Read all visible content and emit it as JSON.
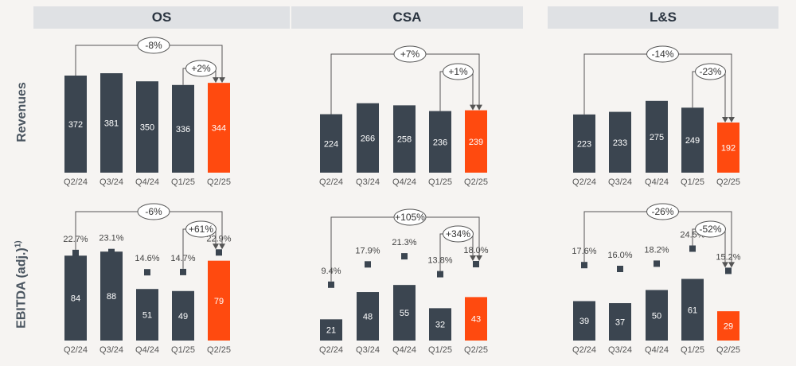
{
  "headers": [
    "OS",
    "CSA",
    "L&S"
  ],
  "row_labels": {
    "revenues": "Revenues",
    "ebitda": "EBITDA (adj.)",
    "ebitda_sup": "1)"
  },
  "colors": {
    "bar": "#3b4550",
    "highlight": "#ff4a0f",
    "line": "#555555",
    "header_bg": "#dfe1e4"
  },
  "chart_data": [
    {
      "type": "bar",
      "segment": "OS",
      "row": "Revenues",
      "categories": [
        "Q2/24",
        "Q3/24",
        "Q4/24",
        "Q1/25",
        "Q2/25"
      ],
      "values": [
        372,
        381,
        350,
        336,
        344
      ],
      "yoy_label": "-8%",
      "qoq_label": "+2%"
    },
    {
      "type": "bar",
      "segment": "CSA",
      "row": "Revenues",
      "categories": [
        "Q2/24",
        "Q3/24",
        "Q4/24",
        "Q1/25",
        "Q2/25"
      ],
      "values": [
        224,
        266,
        258,
        236,
        239
      ],
      "yoy_label": "+7%",
      "qoq_label": "+1%"
    },
    {
      "type": "bar",
      "segment": "L&S",
      "row": "Revenues",
      "categories": [
        "Q2/24",
        "Q3/24",
        "Q4/24",
        "Q1/25",
        "Q2/25"
      ],
      "values": [
        223,
        233,
        275,
        249,
        192
      ],
      "yoy_label": "-14%",
      "qoq_label": "-23%"
    },
    {
      "type": "bar",
      "segment": "OS",
      "row": "EBITDA (adj.)",
      "categories": [
        "Q2/24",
        "Q3/24",
        "Q4/24",
        "Q1/25",
        "Q2/25"
      ],
      "values": [
        84,
        88,
        51,
        49,
        79
      ],
      "margins": [
        "22.7%",
        "23.1%",
        "14.6%",
        "14.7%",
        "22.9%"
      ],
      "margin_values": [
        22.7,
        23.1,
        14.6,
        14.7,
        22.9
      ],
      "yoy_label": "-6%",
      "qoq_label": "+61%"
    },
    {
      "type": "bar",
      "segment": "CSA",
      "row": "EBITDA (adj.)",
      "categories": [
        "Q2/24",
        "Q3/24",
        "Q4/24",
        "Q1/25",
        "Q2/25"
      ],
      "values": [
        21,
        48,
        55,
        32,
        43
      ],
      "margins": [
        "9.4%",
        "17.9%",
        "21.3%",
        "13.8%",
        "18.0%"
      ],
      "margin_values": [
        9.4,
        17.9,
        21.3,
        13.8,
        18.0
      ],
      "yoy_label": "+105%",
      "qoq_label": "+34%"
    },
    {
      "type": "bar",
      "segment": "L&S",
      "row": "EBITDA (adj.)",
      "categories": [
        "Q2/24",
        "Q3/24",
        "Q4/24",
        "Q1/25",
        "Q2/25"
      ],
      "values": [
        39,
        37,
        50,
        61,
        29
      ],
      "margins": [
        "17.6%",
        "16.0%",
        "18.2%",
        "24.5%",
        "15.2%"
      ],
      "margin_values": [
        17.6,
        16.0,
        18.2,
        24.5,
        15.2
      ],
      "yoy_label": "-26%",
      "qoq_label": "-52%"
    }
  ]
}
